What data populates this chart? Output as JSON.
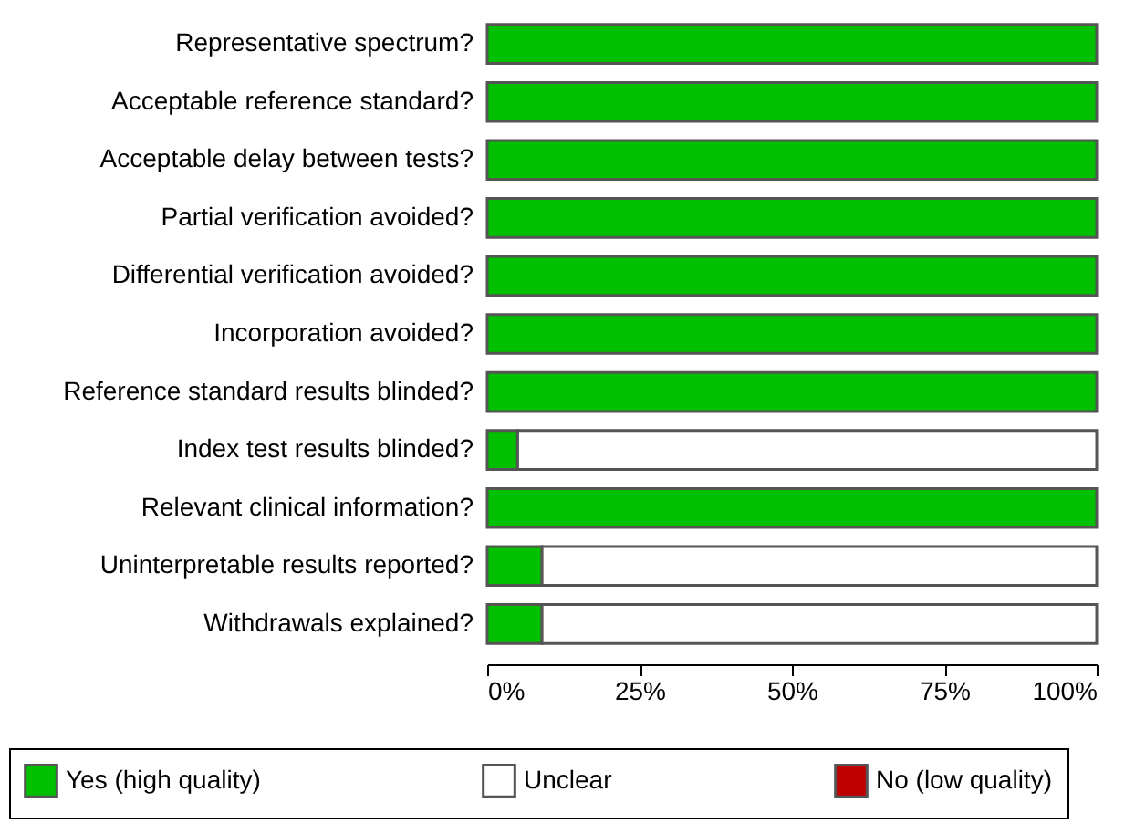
{
  "chart_data": {
    "type": "bar",
    "orientation": "horizontal",
    "stacked": true,
    "categories": [
      "Representative spectrum?",
      "Acceptable reference standard?",
      "Acceptable delay between tests?",
      "Partial verification avoided?",
      "Differential verification avoided?",
      "Incorporation avoided?",
      "Reference standard results blinded?",
      "Index test results blinded?",
      "Relevant clinical information?",
      "Uninterpretable results reported?",
      "Withdrawals explained?"
    ],
    "series": [
      {
        "name": "Yes (high quality)",
        "color": "#00c000",
        "values": [
          100,
          100,
          100,
          100,
          100,
          100,
          100,
          5,
          100,
          9,
          9
        ]
      },
      {
        "name": "Unclear",
        "color": "#ffffff",
        "values": [
          0,
          0,
          0,
          0,
          0,
          0,
          0,
          95,
          0,
          91,
          91
        ]
      },
      {
        "name": "No (low quality)",
        "color": "#c00000",
        "values": [
          0,
          0,
          0,
          0,
          0,
          0,
          0,
          0,
          0,
          0,
          0
        ]
      }
    ],
    "xlim": [
      0,
      100
    ],
    "xticks": [
      {
        "value": 0,
        "label": "0%"
      },
      {
        "value": 25,
        "label": "25%"
      },
      {
        "value": 50,
        "label": "50%"
      },
      {
        "value": 75,
        "label": "75%"
      },
      {
        "value": 100,
        "label": "100%"
      }
    ],
    "grid": false,
    "legend": "bottom"
  }
}
